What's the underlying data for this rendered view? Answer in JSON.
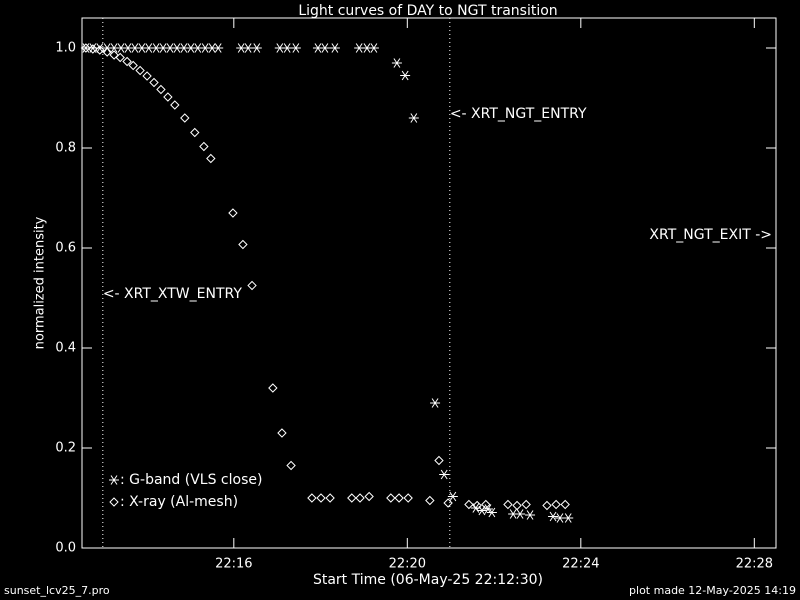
{
  "chart_data": {
    "type": "scatter",
    "title": "Light curves of DAY to NGT transition",
    "x_label": "Start Time (06-May-25 22:12:30)",
    "y_label": "normalized intensity",
    "footer_left": "sunset_lcv25_7.pro",
    "footer_right": "plot made 12-May-2025 14:19",
    "xlim": [
      0,
      16
    ],
    "ylim": [
      0,
      1.06
    ],
    "xticks": [
      {
        "value": 3.5,
        "label": "22:16"
      },
      {
        "value": 7.5,
        "label": "22:20"
      },
      {
        "value": 11.5,
        "label": "22:24"
      },
      {
        "value": 15.5,
        "label": "22:28"
      }
    ],
    "yticks": [
      {
        "value": 0,
        "label": "0.0"
      },
      0.2,
      0.4,
      0.6,
      0.8,
      {
        "value": 1,
        "label": "1.0"
      }
    ],
    "background": "#000000",
    "axis_color": "#ffffff",
    "legend": "lower left",
    "events": [
      {
        "label": "<- XRT_XTW_ENTRY",
        "x": 0.48
      },
      {
        "label": "<- XRT_NGT_ENTRY",
        "x": 8.48
      },
      {
        "label": "XRT_NGT_EXIT ->"
      }
    ],
    "series": [
      {
        "name": ": G-band (VLS close)",
        "marker": "star",
        "color": "#ffffff",
        "x": [
          0.09,
          0.25,
          0.41,
          0.58,
          0.74,
          0.9,
          1.06,
          1.22,
          1.38,
          1.54,
          1.71,
          1.87,
          2.03,
          2.19,
          2.35,
          2.51,
          2.67,
          2.84,
          3.0,
          3.14,
          3.67,
          3.83,
          4.03,
          4.56,
          4.73,
          4.93,
          5.44,
          5.6,
          5.83,
          6.39,
          6.57,
          6.73,
          7.26,
          7.45,
          7.65,
          8.14,
          8.35,
          8.55,
          9.08,
          9.22,
          9.36,
          9.45,
          9.94,
          10.1,
          10.33,
          10.86,
          11.02,
          11.21
        ],
        "values": [
          1,
          1,
          1,
          1,
          1,
          1,
          1,
          1,
          1,
          1,
          1,
          1,
          1,
          1,
          1,
          1,
          1,
          1,
          1,
          1,
          1,
          1,
          1,
          1,
          1,
          1,
          1,
          1,
          1,
          1,
          1,
          1,
          0.97,
          0.945,
          0.86,
          0.29,
          0.147,
          0.103,
          0.08,
          0.075,
          0.078,
          0.071,
          0.068,
          0.068,
          0.066,
          0.063,
          0.06,
          0.06
        ]
      },
      {
        "name": ": X-ray (Al-mesh)",
        "marker": "diamond",
        "color": "#ffffff",
        "x": [
          0.09,
          0.25,
          0.41,
          0.58,
          0.74,
          0.88,
          1.04,
          1.18,
          1.34,
          1.5,
          1.66,
          1.82,
          1.98,
          2.14,
          2.37,
          2.6,
          2.81,
          2.97,
          3.48,
          3.71,
          3.92,
          4.4,
          4.61,
          4.82,
          5.3,
          5.51,
          5.72,
          6.22,
          6.41,
          6.62,
          7.12,
          7.31,
          7.52,
          8.02,
          8.23,
          8.44,
          8.92,
          9.11,
          9.31,
          9.82,
          10.03,
          10.24,
          10.72,
          10.93,
          11.14
        ],
        "values": [
          1.0,
          0.998,
          0.996,
          0.992,
          0.986,
          0.981,
          0.973,
          0.965,
          0.955,
          0.944,
          0.931,
          0.917,
          0.902,
          0.886,
          0.86,
          0.831,
          0.803,
          0.779,
          0.67,
          0.607,
          0.525,
          0.32,
          0.23,
          0.165,
          0.1,
          0.1,
          0.1,
          0.1,
          0.1,
          0.103,
          0.1,
          0.1,
          0.1,
          0.095,
          0.175,
          0.09,
          0.087,
          0.085,
          0.087,
          0.087,
          0.085,
          0.087,
          0.085,
          0.087,
          0.087
        ]
      }
    ]
  }
}
